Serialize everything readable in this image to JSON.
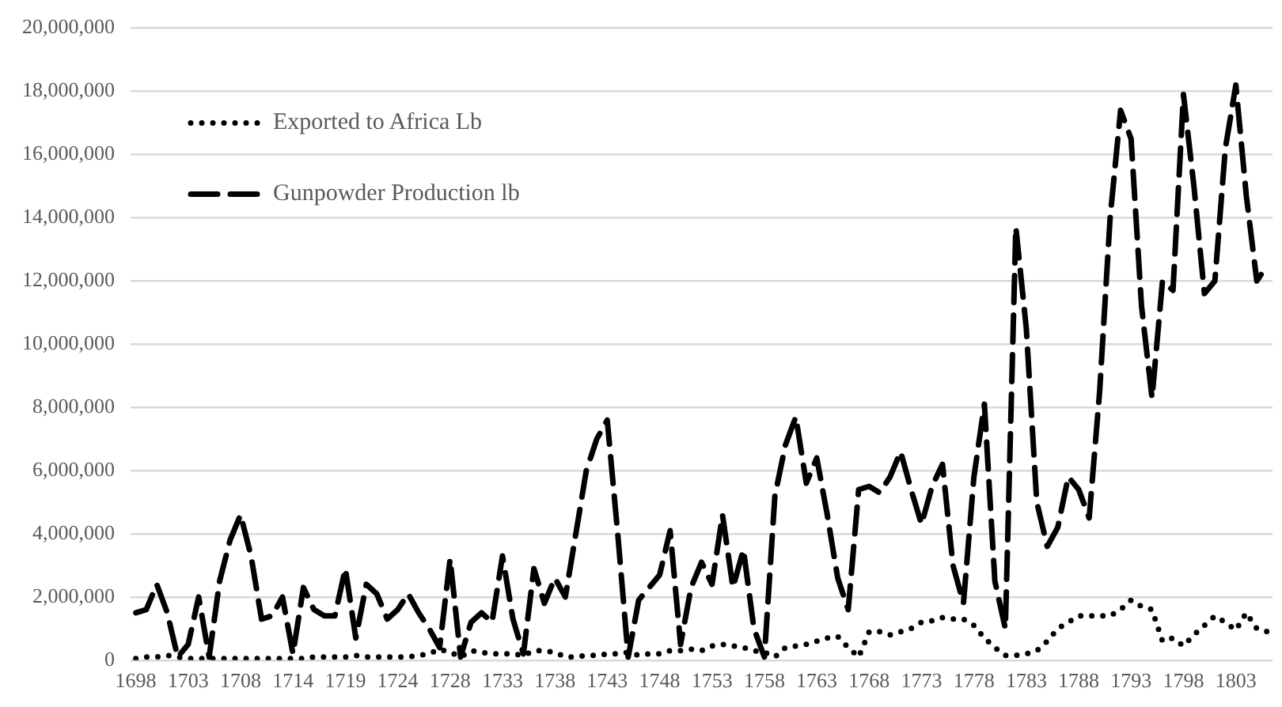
{
  "chart_data": {
    "type": "line",
    "categories": [
      "1698",
      null,
      null,
      null,
      null,
      "1703",
      null,
      null,
      null,
      null,
      "1708",
      null,
      null,
      null,
      null,
      "1714",
      null,
      null,
      null,
      null,
      "1719",
      null,
      null,
      null,
      null,
      "1724",
      null,
      null,
      null,
      null,
      "1728",
      null,
      null,
      null,
      null,
      "1733",
      null,
      null,
      null,
      null,
      "1738",
      null,
      null,
      null,
      null,
      "1743",
      null,
      null,
      null,
      null,
      "1748",
      null,
      null,
      null,
      null,
      "1753",
      null,
      null,
      null,
      null,
      "1758",
      null,
      null,
      null,
      null,
      "1763",
      null,
      null,
      null,
      null,
      "1768",
      null,
      null,
      null,
      null,
      "1773",
      null,
      null,
      null,
      null,
      "1778",
      null,
      null,
      null,
      null,
      "1783",
      null,
      null,
      null,
      null,
      "1788",
      null,
      null,
      null,
      null,
      "1793",
      null,
      null,
      null,
      null,
      "1798",
      null,
      null,
      null,
      null,
      "1803",
      null,
      null,
      null
    ],
    "series": [
      {
        "name": "Exported to Africa Lb",
        "color": "#000000",
        "line_style": "dotted",
        "values": [
          50000,
          100000,
          100000,
          150000,
          100000,
          50000,
          50000,
          50000,
          50000,
          50000,
          50000,
          50000,
          50000,
          50000,
          50000,
          50000,
          50000,
          100000,
          100000,
          100000,
          100000,
          150000,
          100000,
          100000,
          100000,
          100000,
          100000,
          150000,
          200000,
          350000,
          250000,
          100000,
          300000,
          250000,
          200000,
          200000,
          200000,
          150000,
          300000,
          300000,
          250000,
          100000,
          100000,
          150000,
          150000,
          200000,
          200000,
          250000,
          150000,
          200000,
          200000,
          300000,
          300000,
          350000,
          300000,
          450000,
          500000,
          450000,
          400000,
          300000,
          250000,
          100000,
          400000,
          450000,
          500000,
          600000,
          700000,
          750000,
          400000,
          100000,
          900000,
          900000,
          800000,
          900000,
          1000000,
          1200000,
          1250000,
          1350000,
          1300000,
          1300000,
          1100000,
          700000,
          400000,
          150000,
          150000,
          200000,
          300000,
          600000,
          1000000,
          1200000,
          1400000,
          1400000,
          1400000,
          1400000,
          1600000,
          1900000,
          1700000,
          1600000,
          600000,
          700000,
          450000,
          800000,
          1100000,
          1400000,
          1200000,
          950000,
          1500000,
          1000000,
          900000
        ]
      },
      {
        "name": "Gunpowder Production lb",
        "color": "#000000",
        "line_style": "dashed",
        "values": [
          1500000,
          1600000,
          2400000,
          1500000,
          100000,
          500000,
          2000000,
          100000,
          2500000,
          3800000,
          4600000,
          3300000,
          1300000,
          1400000,
          2000000,
          200000,
          2300000,
          1600000,
          1400000,
          1400000,
          2900000,
          700000,
          2400000,
          2100000,
          1300000,
          1600000,
          2100000,
          1500000,
          1000000,
          400000,
          3200000,
          100000,
          1200000,
          1500000,
          1200000,
          3300000,
          1300000,
          200000,
          2900000,
          1800000,
          2600000,
          2000000,
          4000000,
          6000000,
          7000000,
          7600000,
          4000000,
          100000,
          1900000,
          2300000,
          2700000,
          4100000,
          500000,
          2300000,
          3100000,
          2400000,
          4600000,
          2300000,
          3500000,
          1000000,
          100000,
          5200000,
          6800000,
          7700000,
          5600000,
          6400000,
          4600000,
          2600000,
          1600000,
          5400000,
          5500000,
          5300000,
          5800000,
          6600000,
          5400000,
          4300000,
          5500000,
          6200000,
          3000000,
          1800000,
          5800000,
          8100000,
          2500000,
          1000000,
          13700000,
          10500000,
          5000000,
          3600000,
          4200000,
          5800000,
          5400000,
          4500000,
          8500000,
          14000000,
          17400000,
          16500000,
          11200000,
          8300000,
          12000000,
          11700000,
          17900000,
          15000000,
          11600000,
          12000000,
          16200000,
          18200000,
          14700000,
          12000000,
          12500000
        ]
      }
    ],
    "ylim": [
      0,
      20000000
    ],
    "yticks": [
      {
        "value": 0,
        "label": "0"
      },
      {
        "value": 2000000,
        "label": "2,000,000"
      },
      {
        "value": 4000000,
        "label": "4,000,000"
      },
      {
        "value": 6000000,
        "label": "6,000,000"
      },
      {
        "value": 8000000,
        "label": "8,000,000"
      },
      {
        "value": 10000000,
        "label": "10,000,000"
      },
      {
        "value": 12000000,
        "label": "12,000,000"
      },
      {
        "value": 14000000,
        "label": "14,000,000"
      },
      {
        "value": 16000000,
        "label": "16,000,000"
      },
      {
        "value": 18000000,
        "label": "18,000,000"
      },
      {
        "value": 20000000,
        "label": "20,000,000"
      }
    ],
    "grid": "y",
    "legend": "top left",
    "marker": "none"
  }
}
